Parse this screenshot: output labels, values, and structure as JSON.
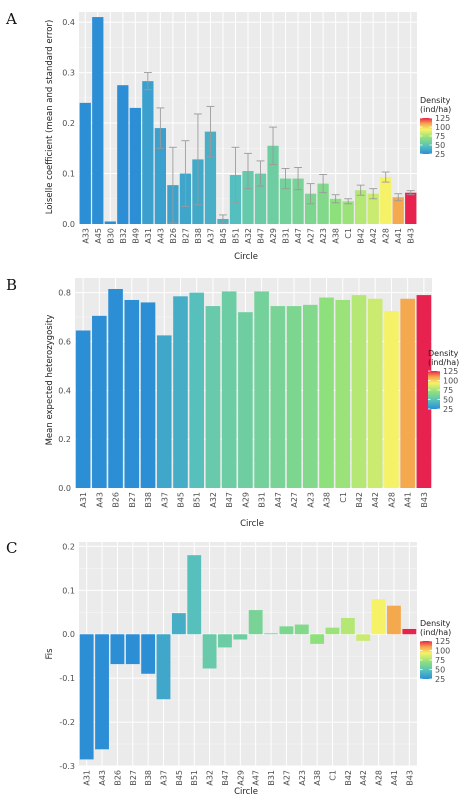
{
  "chart_data": [
    {
      "panel": "A",
      "type": "bar",
      "xlabel": "Circle",
      "ylabel": "Loiselle coefficient (mean and standard error)",
      "ylim": [
        0,
        0.42
      ],
      "yticks": [
        "0.0",
        "0.1",
        "0.2",
        "0.3",
        "0.4"
      ],
      "ytick_values": [
        0,
        0.1,
        0.2,
        0.3,
        0.4
      ],
      "grid": true,
      "categories": [
        "A33",
        "A45",
        "B30",
        "B32",
        "B49",
        "A31",
        "A43",
        "B26",
        "B27",
        "B38",
        "A37",
        "B45",
        "B51",
        "A32",
        "B47",
        "A29",
        "B31",
        "A47",
        "A27",
        "A23",
        "A38",
        "C1",
        "B42",
        "A42",
        "A28",
        "A41",
        "B43"
      ],
      "values": [
        0.24,
        0.41,
        0.005,
        0.275,
        0.23,
        0.283,
        0.19,
        0.077,
        0.1,
        0.128,
        0.183,
        0.01,
        0.097,
        0.105,
        0.1,
        0.155,
        0.09,
        0.09,
        0.06,
        0.08,
        0.05,
        0.045,
        0.067,
        0.06,
        0.093,
        0.053,
        0.062
      ],
      "errors": [
        0,
        0,
        0,
        0,
        0,
        0.017,
        0.04,
        0.075,
        0.065,
        0.09,
        0.05,
        0.008,
        0.055,
        0.035,
        0.025,
        0.037,
        0.02,
        0.022,
        0.02,
        0.018,
        0.008,
        0.005,
        0.01,
        0.01,
        0.01,
        0.007,
        0.004
      ],
      "density": [
        22,
        22,
        22,
        22,
        22,
        30,
        30,
        31,
        32,
        34,
        37,
        38,
        44,
        51,
        53,
        55,
        57,
        59,
        61,
        63,
        68,
        71,
        77,
        82,
        92,
        108,
        125
      ],
      "legend": {
        "title_line1": "Density",
        "title_line2": "(ind/ha)",
        "ticks": [
          "125",
          "100",
          "75",
          "50",
          "25"
        ],
        "tick_values": [
          125,
          100,
          75,
          50,
          25
        ],
        "placement": "right"
      }
    },
    {
      "panel": "B",
      "type": "bar",
      "xlabel": "Circle",
      "ylabel": "Mean expected heterozygosity",
      "ylim": [
        0,
        0.86
      ],
      "yticks": [
        "0.0",
        "0.2",
        "0.4",
        "0.6",
        "0.8"
      ],
      "ytick_values": [
        0,
        0.2,
        0.4,
        0.6,
        0.8
      ],
      "grid": true,
      "categories": [
        "A31",
        "A43",
        "B26",
        "B27",
        "B38",
        "A37",
        "B45",
        "B51",
        "A32",
        "B47",
        "A29",
        "B31",
        "A47",
        "A27",
        "A23",
        "A38",
        "C1",
        "B42",
        "A42",
        "A28",
        "A41",
        "B43"
      ],
      "values": [
        0.645,
        0.705,
        0.815,
        0.77,
        0.76,
        0.625,
        0.785,
        0.8,
        0.745,
        0.805,
        0.72,
        0.805,
        0.745,
        0.745,
        0.75,
        0.78,
        0.77,
        0.79,
        0.775,
        0.725,
        0.775,
        0.79
      ],
      "density": [
        22,
        22,
        22,
        22,
        22,
        33,
        36,
        45,
        52,
        54,
        55,
        57,
        59,
        61,
        63,
        68,
        71,
        77,
        82,
        92,
        108,
        125
      ],
      "legend": {
        "title_line1": "Density",
        "title_line2": "(ind/ha)",
        "ticks": [
          "125",
          "100",
          "75",
          "50",
          "25"
        ],
        "tick_values": [
          125,
          100,
          75,
          50,
          25
        ],
        "placement": "right"
      }
    },
    {
      "panel": "C",
      "type": "bar",
      "xlabel": "Circle",
      "ylabel": "Fis",
      "ylim": [
        -0.3,
        0.21
      ],
      "yticks": [
        "0.2",
        "0.1",
        "0.0",
        "-0.1",
        "-0.2",
        "-0.3"
      ],
      "ytick_values": [
        0.2,
        0.1,
        0.0,
        -0.1,
        -0.2,
        -0.3
      ],
      "grid": true,
      "categories": [
        "A31",
        "A43",
        "B26",
        "B27",
        "B38",
        "A37",
        "B45",
        "B51",
        "A32",
        "B47",
        "A29",
        "A47",
        "B31",
        "A27",
        "A23",
        "A38",
        "C1",
        "B42",
        "A42",
        "A28",
        "A41",
        "B43"
      ],
      "values": [
        -0.285,
        -0.262,
        -0.068,
        -0.068,
        -0.09,
        -0.148,
        0.048,
        0.18,
        -0.078,
        -0.03,
        -0.012,
        0.055,
        0.002,
        0.018,
        0.022,
        -0.022,
        0.015,
        0.037,
        -0.015,
        0.08,
        0.065,
        0.012
      ],
      "density": [
        22,
        22,
        22,
        22,
        22,
        33,
        36,
        45,
        52,
        54,
        55,
        59,
        57,
        61,
        63,
        68,
        71,
        77,
        82,
        92,
        108,
        125
      ],
      "legend": {
        "title_line1": "Density",
        "title_line2": "(ind/ha)",
        "ticks": [
          "125",
          "100",
          "75",
          "50",
          "25"
        ],
        "tick_values": [
          125,
          100,
          75,
          50,
          25
        ],
        "placement": "right"
      }
    }
  ],
  "colors": {
    "scale": [
      "#2c8fd6",
      "#56c0be",
      "#8fe07c",
      "#f6f268",
      "#f5a24c",
      "#e8224e"
    ],
    "panel_bg": "#ebebeb",
    "grid": "#ffffff"
  }
}
